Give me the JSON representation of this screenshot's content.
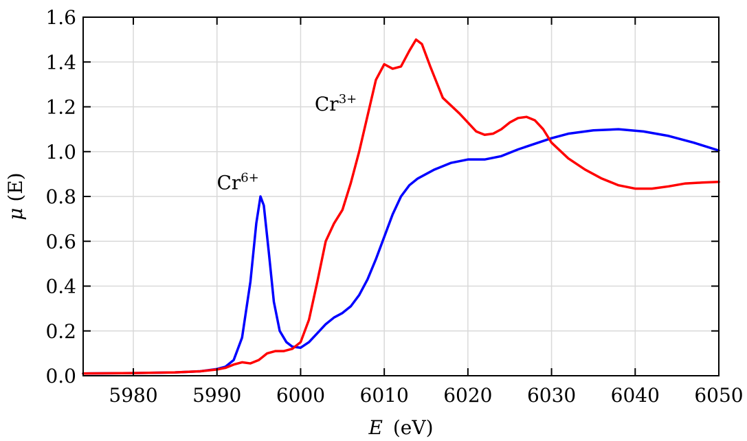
{
  "chart_data": {
    "type": "line",
    "xlabel_var": "E",
    "xlabel_unit": "(eV)",
    "ylabel_var": "μ",
    "ylabel_arg": "(E)",
    "xlim": [
      5974,
      6050
    ],
    "ylim": [
      0,
      1.6
    ],
    "x_ticks": [
      5980,
      5990,
      6000,
      6010,
      6020,
      6030,
      6040,
      6050
    ],
    "x_tick_labels": [
      "5980",
      "5990",
      "6000",
      "6010",
      "6020",
      "6030",
      "6040",
      "6050"
    ],
    "y_ticks": [
      0.0,
      0.2,
      0.4,
      0.6,
      0.8,
      1.0,
      1.2,
      1.4,
      1.6
    ],
    "y_tick_labels": [
      "0.0",
      "0.2",
      "0.4",
      "0.6",
      "0.8",
      "1.0",
      "1.2",
      "1.4",
      "1.6"
    ],
    "grid": true,
    "series": [
      {
        "name": "Cr6+",
        "color": "#0000ff",
        "points": [
          [
            5974,
            0.01
          ],
          [
            5980,
            0.012
          ],
          [
            5985,
            0.015
          ],
          [
            5988,
            0.02
          ],
          [
            5990,
            0.03
          ],
          [
            5991,
            0.04
          ],
          [
            5992,
            0.07
          ],
          [
            5993,
            0.17
          ],
          [
            5994,
            0.42
          ],
          [
            5994.7,
            0.68
          ],
          [
            5995.2,
            0.8
          ],
          [
            5995.6,
            0.76
          ],
          [
            5996.2,
            0.55
          ],
          [
            5996.8,
            0.33
          ],
          [
            5997.5,
            0.2
          ],
          [
            5998.3,
            0.15
          ],
          [
            5999,
            0.13
          ],
          [
            6000,
            0.125
          ],
          [
            6001,
            0.15
          ],
          [
            6002,
            0.19
          ],
          [
            6003,
            0.23
          ],
          [
            6004,
            0.26
          ],
          [
            6005,
            0.28
          ],
          [
            6006,
            0.31
          ],
          [
            6007,
            0.36
          ],
          [
            6008,
            0.43
          ],
          [
            6009,
            0.52
          ],
          [
            6010,
            0.62
          ],
          [
            6011,
            0.72
          ],
          [
            6012,
            0.8
          ],
          [
            6013,
            0.85
          ],
          [
            6014,
            0.88
          ],
          [
            6016,
            0.92
          ],
          [
            6018,
            0.95
          ],
          [
            6020,
            0.965
          ],
          [
            6022,
            0.965
          ],
          [
            6024,
            0.98
          ],
          [
            6026,
            1.01
          ],
          [
            6028,
            1.035
          ],
          [
            6030,
            1.06
          ],
          [
            6032,
            1.08
          ],
          [
            6035,
            1.095
          ],
          [
            6038,
            1.1
          ],
          [
            6041,
            1.09
          ],
          [
            6044,
            1.07
          ],
          [
            6047,
            1.04
          ],
          [
            6050,
            1.005
          ]
        ]
      },
      {
        "name": "Cr3+",
        "color": "#ff0000",
        "points": [
          [
            5974,
            0.01
          ],
          [
            5980,
            0.012
          ],
          [
            5985,
            0.015
          ],
          [
            5988,
            0.02
          ],
          [
            5990,
            0.028
          ],
          [
            5991,
            0.035
          ],
          [
            5992,
            0.05
          ],
          [
            5993,
            0.06
          ],
          [
            5994,
            0.055
          ],
          [
            5995,
            0.07
          ],
          [
            5996,
            0.1
          ],
          [
            5997,
            0.11
          ],
          [
            5998,
            0.11
          ],
          [
            5999,
            0.12
          ],
          [
            6000,
            0.15
          ],
          [
            6001,
            0.25
          ],
          [
            6002,
            0.42
          ],
          [
            6003,
            0.6
          ],
          [
            6004,
            0.68
          ],
          [
            6005,
            0.74
          ],
          [
            6006,
            0.86
          ],
          [
            6007,
            1.0
          ],
          [
            6008,
            1.16
          ],
          [
            6009,
            1.32
          ],
          [
            6010,
            1.39
          ],
          [
            6011,
            1.37
          ],
          [
            6012,
            1.38
          ],
          [
            6013,
            1.45
          ],
          [
            6013.8,
            1.5
          ],
          [
            6014.5,
            1.48
          ],
          [
            6015.5,
            1.38
          ],
          [
            6017,
            1.24
          ],
          [
            6019,
            1.17
          ],
          [
            6021,
            1.09
          ],
          [
            6022,
            1.075
          ],
          [
            6023,
            1.08
          ],
          [
            6024,
            1.1
          ],
          [
            6025,
            1.13
          ],
          [
            6026,
            1.15
          ],
          [
            6027,
            1.155
          ],
          [
            6028,
            1.14
          ],
          [
            6029,
            1.1
          ],
          [
            6030,
            1.04
          ],
          [
            6032,
            0.97
          ],
          [
            6034,
            0.92
          ],
          [
            6036,
            0.88
          ],
          [
            6038,
            0.85
          ],
          [
            6040,
            0.835
          ],
          [
            6042,
            0.835
          ],
          [
            6044,
            0.845
          ],
          [
            6046,
            0.858
          ],
          [
            6048,
            0.862
          ],
          [
            6050,
            0.865
          ]
        ]
      }
    ],
    "annotations": [
      {
        "label": "Cr",
        "sup": "6+",
        "x": 5992.5,
        "y": 0.86
      },
      {
        "label": "Cr",
        "sup": "3+",
        "x": 6004.2,
        "y": 1.21
      }
    ]
  }
}
